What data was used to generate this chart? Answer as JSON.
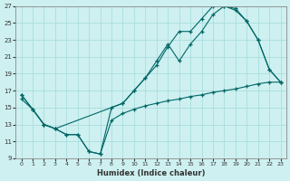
{
  "xlabel": "Humidex (Indice chaleur)",
  "background_color": "#cef0f0",
  "grid_color": "#aadddd",
  "line_color": "#006666",
  "xlim": [
    -0.5,
    23.5
  ],
  "ylim": [
    9,
    27
  ],
  "xticks": [
    0,
    1,
    2,
    3,
    4,
    5,
    6,
    7,
    8,
    9,
    10,
    11,
    12,
    13,
    14,
    15,
    16,
    17,
    18,
    19,
    20,
    21,
    22,
    23
  ],
  "yticks": [
    9,
    11,
    13,
    15,
    17,
    19,
    21,
    23,
    25,
    27
  ],
  "curve1_x": [
    0,
    1,
    2,
    3,
    4,
    5,
    6,
    7,
    8,
    9,
    10,
    11,
    12,
    13,
    14,
    15,
    16,
    17,
    18,
    19,
    20,
    21,
    22,
    23
  ],
  "curve1_y": [
    16.5,
    14.8,
    13.0,
    12.5,
    11.8,
    11.8,
    9.8,
    9.5,
    15.0,
    15.5,
    17.0,
    18.5,
    20.5,
    22.5,
    20.5,
    22.5,
    24.0,
    26.0,
    27.0,
    26.7,
    25.2,
    23.0,
    19.5,
    18.0
  ],
  "curve2_x": [
    0,
    1,
    2,
    3,
    9,
    10,
    11,
    12,
    13,
    14,
    15,
    16,
    17,
    18,
    19,
    20,
    21,
    22,
    23
  ],
  "curve2_y": [
    16.5,
    14.8,
    13.0,
    12.5,
    15.5,
    17.0,
    18.5,
    20.0,
    22.2,
    24.0,
    24.0,
    25.5,
    27.0,
    27.0,
    26.5,
    25.2,
    23.0,
    19.5,
    18.0
  ],
  "curve3_x": [
    0,
    1,
    2,
    3,
    4,
    5,
    6,
    7,
    8,
    9,
    10,
    11,
    12,
    13,
    14,
    15,
    16,
    17,
    18,
    19,
    20,
    21,
    22,
    23
  ],
  "curve3_y": [
    16.0,
    14.8,
    13.0,
    12.5,
    11.8,
    11.8,
    9.8,
    9.5,
    13.5,
    14.3,
    14.8,
    15.2,
    15.5,
    15.8,
    16.0,
    16.3,
    16.5,
    16.8,
    17.0,
    17.2,
    17.5,
    17.8,
    18.0,
    18.0
  ]
}
